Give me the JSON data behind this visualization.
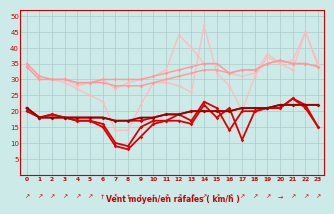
{
  "x": [
    0,
    1,
    2,
    3,
    4,
    5,
    6,
    7,
    8,
    9,
    10,
    11,
    12,
    13,
    14,
    15,
    16,
    17,
    18,
    19,
    20,
    21,
    22,
    23
  ],
  "series": [
    {
      "name": "lightest_pink_top",
      "color": "#ffbbbb",
      "lw": 0.9,
      "marker": "D",
      "ms": 1.8,
      "y": [
        35,
        31,
        30,
        30,
        28,
        29,
        30,
        27,
        29,
        30,
        31,
        33,
        44,
        40,
        35,
        35,
        32,
        31,
        32,
        38,
        35,
        36,
        45,
        35
      ]
    },
    {
      "name": "light_pink_dip",
      "color": "#ffbbbb",
      "lw": 0.9,
      "marker": "D",
      "ms": 1.8,
      "y": [
        34,
        30,
        30,
        29,
        27,
        25,
        23,
        14,
        14,
        22,
        29,
        29,
        28,
        26,
        47,
        32,
        28,
        20,
        31,
        37,
        35,
        33,
        45,
        34
      ]
    },
    {
      "name": "medium_pink_flat",
      "color": "#ff9999",
      "lw": 1.0,
      "marker": "D",
      "ms": 1.8,
      "y": [
        34,
        30,
        30,
        30,
        29,
        29,
        30,
        30,
        30,
        30,
        31,
        32,
        33,
        34,
        35,
        35,
        32,
        33,
        33,
        35,
        36,
        35,
        35,
        34
      ]
    },
    {
      "name": "medium_pink_flat2",
      "color": "#ff9999",
      "lw": 1.0,
      "marker": "D",
      "ms": 1.8,
      "y": [
        35,
        31,
        30,
        30,
        29,
        29,
        29,
        28,
        28,
        28,
        29,
        30,
        31,
        32,
        33,
        33,
        32,
        33,
        33,
        35,
        36,
        35,
        35,
        34
      ]
    },
    {
      "name": "red_main_low",
      "color": "#dd0000",
      "lw": 1.3,
      "marker": "D",
      "ms": 1.8,
      "y": [
        21,
        18,
        19,
        18,
        17,
        17,
        16,
        10,
        9,
        15,
        17,
        17,
        19,
        17,
        23,
        21,
        14,
        20,
        20,
        21,
        21,
        24,
        22,
        15
      ]
    },
    {
      "name": "red_zigzag",
      "color": "#dd0000",
      "lw": 1.3,
      "marker": "D",
      "ms": 1.8,
      "y": [
        21,
        18,
        19,
        18,
        17,
        17,
        15,
        9,
        8,
        12,
        16,
        17,
        17,
        16,
        22,
        18,
        21,
        11,
        20,
        21,
        21,
        24,
        21,
        15
      ]
    },
    {
      "name": "red_rising",
      "color": "#dd0000",
      "lw": 1.3,
      "marker": "D",
      "ms": 1.8,
      "y": [
        20,
        18,
        18,
        18,
        18,
        18,
        18,
        17,
        17,
        17,
        18,
        19,
        19,
        20,
        20,
        20,
        20,
        21,
        21,
        21,
        22,
        22,
        22,
        22
      ]
    },
    {
      "name": "darkred_rising",
      "color": "#990000",
      "lw": 1.3,
      "marker": "D",
      "ms": 1.8,
      "y": [
        21,
        18,
        18,
        18,
        18,
        18,
        18,
        17,
        17,
        18,
        18,
        19,
        19,
        20,
        20,
        20,
        20,
        21,
        21,
        21,
        22,
        22,
        22,
        22
      ]
    }
  ],
  "xlabel": "Vent moyen/en rafales ( km/h )",
  "ylim": [
    0,
    52
  ],
  "xlim": [
    -0.5,
    23.5
  ],
  "yticks": [
    5,
    10,
    15,
    20,
    25,
    30,
    35,
    40,
    45,
    50
  ],
  "xticks": [
    0,
    1,
    2,
    3,
    4,
    5,
    6,
    7,
    8,
    9,
    10,
    11,
    12,
    13,
    14,
    15,
    16,
    17,
    18,
    19,
    20,
    21,
    22,
    23
  ],
  "bg_color": "#cceae8",
  "grid_color": "#aacccc",
  "label_color": "#cc0000",
  "arrow_chars": [
    "↗",
    "↗",
    "↗",
    "↗",
    "↗",
    "↗",
    "↑",
    "↖",
    "↑",
    "↑",
    "↑",
    "↗",
    "↗",
    "↗",
    "↗",
    "↗",
    "↗",
    "↗",
    "↗",
    "↗",
    "→",
    "↗",
    "↗",
    "↗"
  ]
}
